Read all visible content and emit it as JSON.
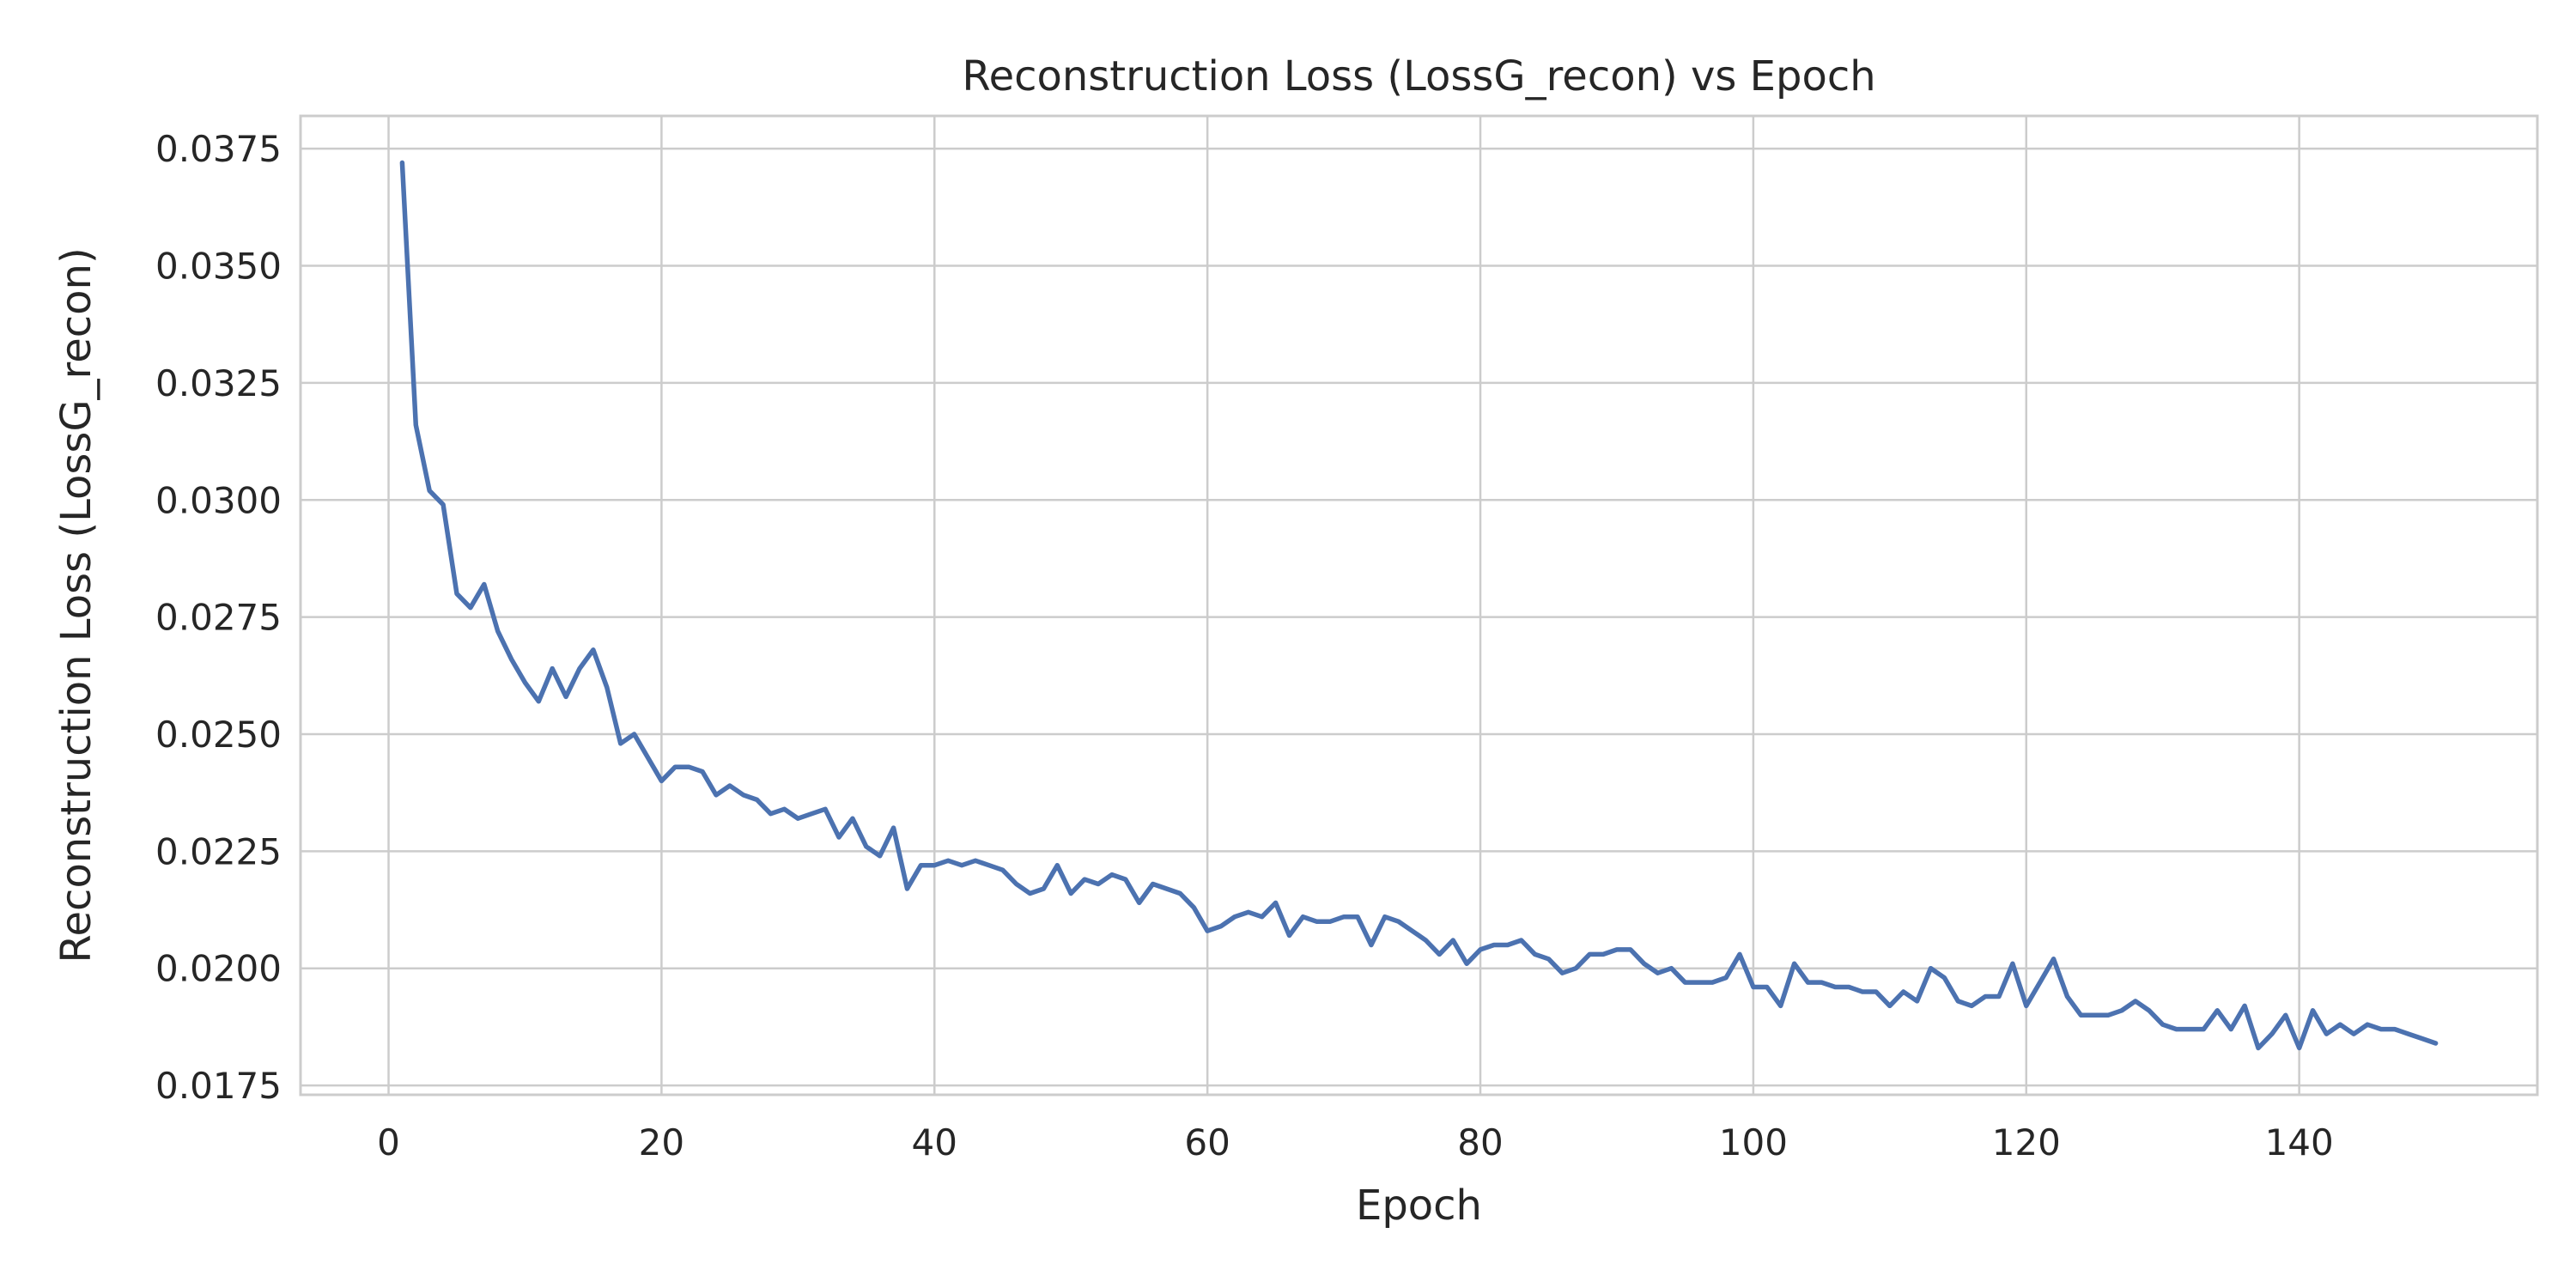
{
  "chart_data": {
    "type": "line",
    "title": "Reconstruction Loss (LossG_recon) vs Epoch",
    "xlabel": "Epoch",
    "ylabel": "Reconstruction Loss (LossG_recon)",
    "xlim": [
      -6.45,
      157.45
    ],
    "ylim": [
      0.0173,
      0.0382
    ],
    "xticks": [
      0,
      20,
      40,
      60,
      80,
      100,
      120,
      140
    ],
    "xtick_labels": [
      "0",
      "20",
      "40",
      "60",
      "80",
      "100",
      "120",
      "140"
    ],
    "yticks": [
      0.0175,
      0.02,
      0.0225,
      0.025,
      0.0275,
      0.03,
      0.0325,
      0.035,
      0.0375
    ],
    "ytick_labels": [
      "0.0175",
      "0.0200",
      "0.0225",
      "0.0250",
      "0.0275",
      "0.0300",
      "0.0325",
      "0.0350",
      "0.0375"
    ],
    "grid": true,
    "line_color": "#4c72b0",
    "series": [
      {
        "name": "",
        "x": [
          1,
          2,
          3,
          4,
          5,
          6,
          7,
          8,
          9,
          10,
          11,
          12,
          13,
          14,
          15,
          16,
          17,
          18,
          19,
          20,
          21,
          22,
          23,
          24,
          25,
          26,
          27,
          28,
          29,
          30,
          31,
          32,
          33,
          34,
          35,
          36,
          37,
          38,
          39,
          40,
          41,
          42,
          43,
          44,
          45,
          46,
          47,
          48,
          49,
          50,
          51,
          52,
          53,
          54,
          55,
          56,
          57,
          58,
          59,
          60,
          61,
          62,
          63,
          64,
          65,
          66,
          67,
          68,
          69,
          70,
          71,
          72,
          73,
          74,
          75,
          76,
          77,
          78,
          79,
          80,
          81,
          82,
          83,
          84,
          85,
          86,
          87,
          88,
          89,
          90,
          91,
          92,
          93,
          94,
          95,
          96,
          97,
          98,
          99,
          100,
          101,
          102,
          103,
          104,
          105,
          106,
          107,
          108,
          109,
          110,
          111,
          112,
          113,
          114,
          115,
          116,
          117,
          118,
          119,
          120,
          121,
          122,
          123,
          124,
          125,
          126,
          127,
          128,
          129,
          130,
          131,
          132,
          133,
          134,
          135,
          136,
          137,
          138,
          139,
          140,
          141,
          142,
          143,
          144,
          145,
          146,
          147,
          148,
          149,
          150
        ],
        "y": [
          0.0372,
          0.0316,
          0.0302,
          0.0299,
          0.028,
          0.0277,
          0.0282,
          0.0272,
          0.0266,
          0.0261,
          0.0257,
          0.0264,
          0.0258,
          0.0264,
          0.0268,
          0.026,
          0.0248,
          0.025,
          0.0245,
          0.024,
          0.0243,
          0.0243,
          0.0242,
          0.0237,
          0.0239,
          0.0237,
          0.0236,
          0.0233,
          0.0234,
          0.0232,
          0.0233,
          0.0234,
          0.0228,
          0.0232,
          0.0226,
          0.0224,
          0.023,
          0.0217,
          0.0222,
          0.0222,
          0.0223,
          0.0222,
          0.0223,
          0.0222,
          0.0221,
          0.0218,
          0.0216,
          0.0217,
          0.0222,
          0.0216,
          0.0219,
          0.0218,
          0.022,
          0.0219,
          0.0214,
          0.0218,
          0.0217,
          0.0216,
          0.0213,
          0.0208,
          0.0209,
          0.0211,
          0.0212,
          0.0211,
          0.0214,
          0.0207,
          0.0211,
          0.021,
          0.021,
          0.0211,
          0.0211,
          0.0205,
          0.0211,
          0.021,
          0.0208,
          0.0206,
          0.0203,
          0.0206,
          0.0201,
          0.0204,
          0.0205,
          0.0205,
          0.0206,
          0.0203,
          0.0202,
          0.0199,
          0.02,
          0.0203,
          0.0203,
          0.0204,
          0.0204,
          0.0201,
          0.0199,
          0.02,
          0.0197,
          0.0197,
          0.0197,
          0.0198,
          0.0203,
          0.0196,
          0.0196,
          0.0192,
          0.0201,
          0.0197,
          0.0197,
          0.0196,
          0.0196,
          0.0195,
          0.0195,
          0.0192,
          0.0195,
          0.0193,
          0.02,
          0.0198,
          0.0193,
          0.0192,
          0.0194,
          0.0194,
          0.0201,
          0.0192,
          0.0197,
          0.0202,
          0.0194,
          0.019,
          0.019,
          0.019,
          0.0191,
          0.0193,
          0.0191,
          0.0188,
          0.0187,
          0.0187,
          0.0187,
          0.0191,
          0.0187,
          0.0192,
          0.0183,
          0.0186,
          0.019,
          0.0183,
          0.0191,
          0.0186,
          0.0188,
          0.0186,
          0.0188,
          0.0187,
          0.0187,
          0.0186,
          0.0185,
          0.0184
        ]
      }
    ]
  }
}
